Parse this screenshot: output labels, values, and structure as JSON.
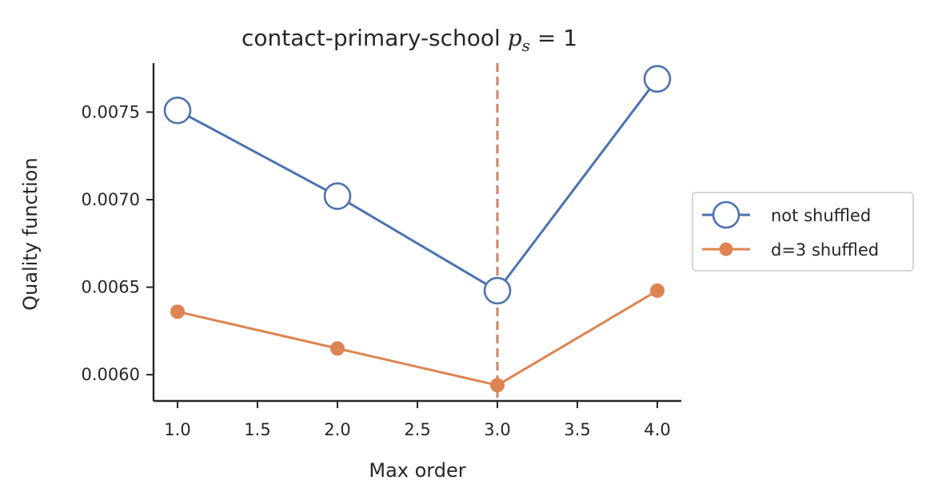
{
  "chart_data": {
    "type": "line",
    "title_prefix": "contact-primary-school ",
    "title_math": "p",
    "title_sub": "s",
    "title_suffix": " = 1",
    "xlabel": "Max order",
    "ylabel": "Quality function",
    "xlim": [
      0.85,
      4.15
    ],
    "ylim": [
      0.00585,
      0.00778
    ],
    "xticks": [
      1.0,
      1.5,
      2.0,
      2.5,
      3.0,
      3.5,
      4.0
    ],
    "xtick_labels": [
      "1.0",
      "1.5",
      "2.0",
      "2.5",
      "3.0",
      "3.5",
      "4.0"
    ],
    "yticks": [
      0.006,
      0.0065,
      0.007,
      0.0075
    ],
    "ytick_labels": [
      "0.0060",
      "0.0065",
      "0.0070",
      "0.0075"
    ],
    "vline_x": 3.0,
    "vline_color": "#c9846b",
    "x": [
      1,
      2,
      3,
      4
    ],
    "series": [
      {
        "name": "not shuffled",
        "values": [
          0.00751,
          0.00702,
          0.00648,
          0.00769
        ],
        "color": "#4c72b0",
        "marker": "open-circle"
      },
      {
        "name": "d=3 shuffled",
        "values": [
          0.00636,
          0.00615,
          0.00594,
          0.00648
        ],
        "color": "#dd8452",
        "marker": "filled-circle"
      }
    ],
    "grid": false,
    "legend_position": "outside-right"
  }
}
